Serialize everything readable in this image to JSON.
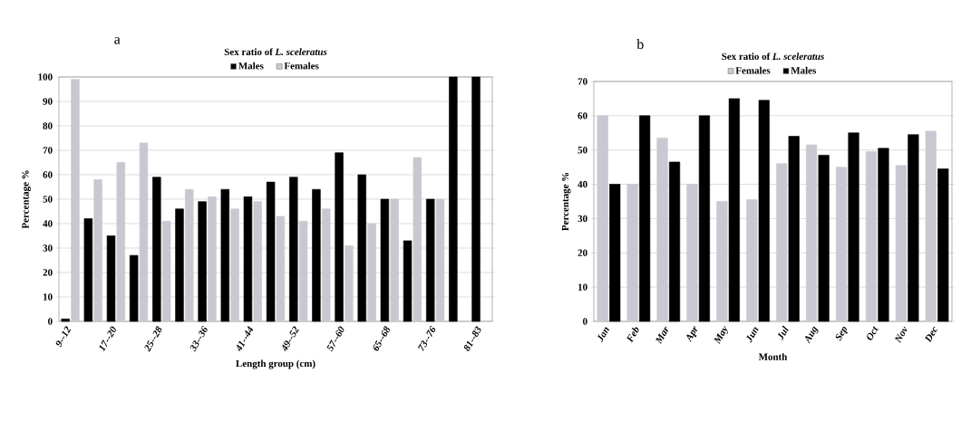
{
  "chart_data": [
    {
      "type": "bar",
      "title": "Sex ratio of *L. sceleratus*",
      "xlabel": "Length group (cm)",
      "ylabel": "Percentage %",
      "annotations": [
        "a"
      ],
      "categories": [
        "9--12",
        null,
        "17--20",
        null,
        "25--28",
        null,
        "33--36",
        null,
        "41--44",
        null,
        "49--52",
        null,
        "57--60",
        null,
        "65--68",
        null,
        "73--76",
        null,
        "81--83"
      ],
      "series": [
        {
          "name": "Males",
          "color": "#000000",
          "values": [
            1,
            42,
            35,
            27,
            59,
            46,
            49,
            54,
            51,
            57,
            59,
            54,
            69,
            60,
            50,
            33,
            50,
            100,
            100
          ]
        },
        {
          "name": "Females",
          "color": "#c8c8d2",
          "values": [
            99,
            58,
            65,
            73,
            41,
            54,
            51,
            46,
            49,
            43,
            41,
            46,
            31,
            40,
            50,
            67,
            50,
            0,
            0
          ]
        }
      ],
      "ylim": [
        0,
        100
      ],
      "yticks": [
        0,
        10,
        20,
        30,
        40,
        50,
        60,
        70,
        80,
        90,
        100
      ],
      "grid": "y",
      "legend": "top"
    },
    {
      "type": "bar",
      "title": "Sex ratio of *L. sceleratus*",
      "xlabel": "Month",
      "ylabel": "Percentage %",
      "annotations": [
        "b"
      ],
      "categories": [
        "Jan",
        "Feb",
        "Mar",
        "Apr",
        "May",
        "Jun",
        "Jul",
        "Aug",
        "Sep",
        "Oct",
        "Nov",
        "Dec"
      ],
      "series": [
        {
          "name": "Females",
          "color": "#c8c8d2",
          "values": [
            60,
            40,
            53.5,
            40,
            35,
            35.5,
            46,
            51.5,
            45,
            49.5,
            45.5,
            55.5
          ]
        },
        {
          "name": "Males",
          "color": "#000000",
          "values": [
            40,
            60,
            46.5,
            60,
            65,
            64.5,
            54,
            48.5,
            55,
            50.5,
            54.5,
            44.5
          ]
        }
      ],
      "ylim": [
        0,
        70
      ],
      "yticks": [
        0,
        10,
        20,
        30,
        40,
        50,
        60,
        70
      ],
      "grid": "y",
      "legend": "top"
    }
  ]
}
